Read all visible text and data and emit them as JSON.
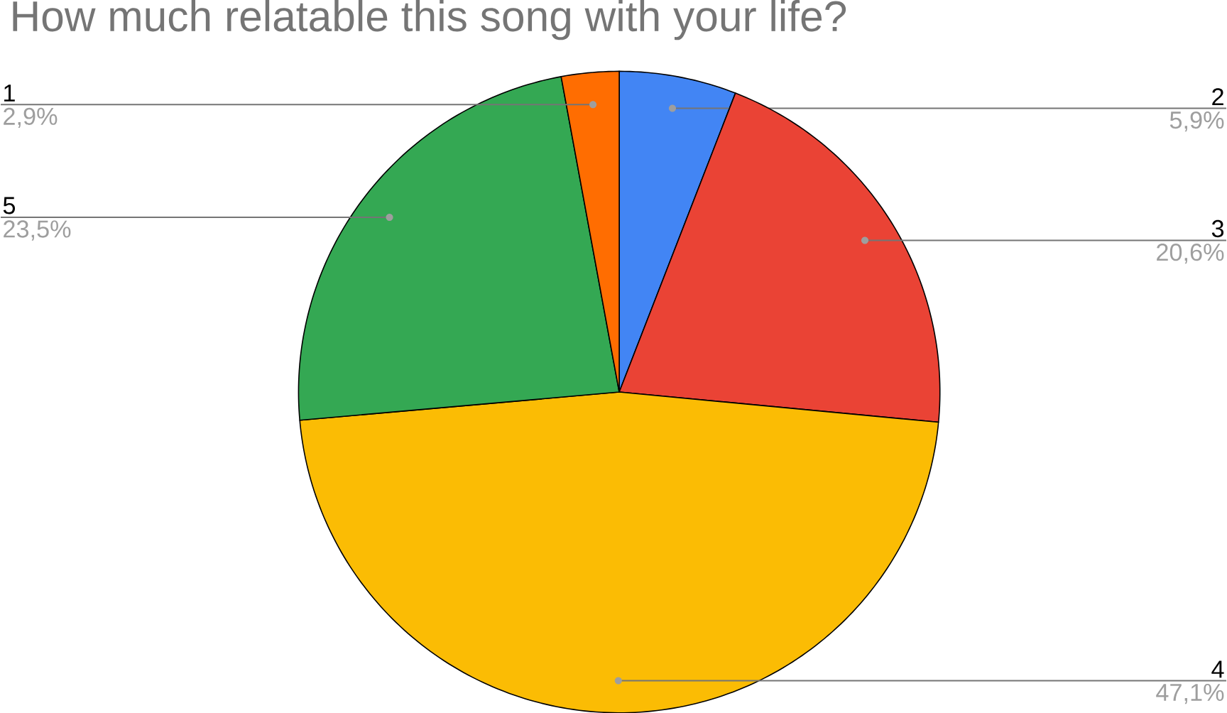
{
  "chart_data": {
    "type": "pie",
    "title": "How much relatable this song with your life?",
    "categories": [
      "2",
      "3",
      "4",
      "5",
      "1"
    ],
    "values": [
      5.9,
      20.6,
      47.1,
      23.5,
      2.9
    ],
    "value_labels": [
      "5,9%",
      "20,6%",
      "47,1%",
      "23,5%",
      "2,9%"
    ],
    "colors": [
      "#4285f4",
      "#ea4335",
      "#fbbc04",
      "#34a853",
      "#ff6d01"
    ]
  }
}
